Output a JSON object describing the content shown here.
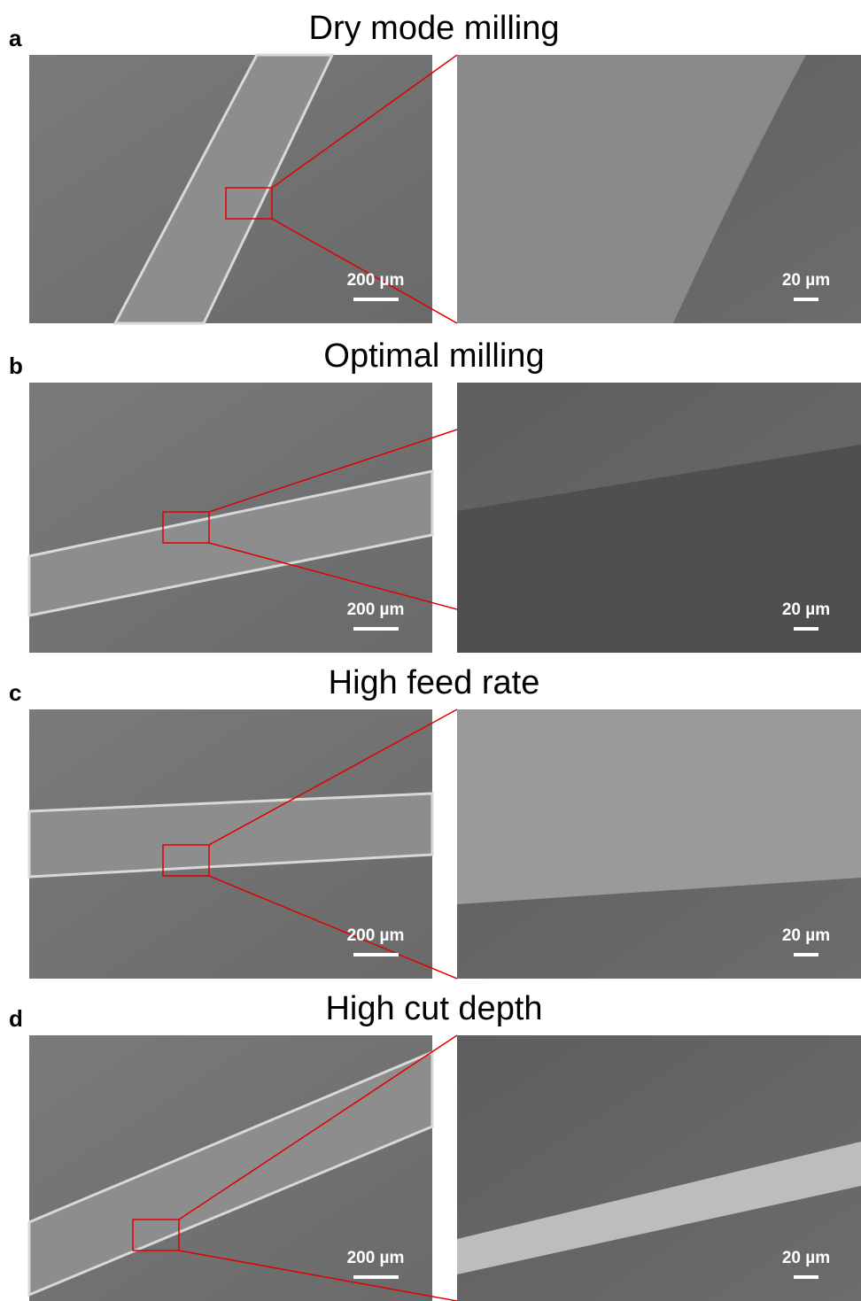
{
  "panels": [
    {
      "letter": "a",
      "title": "Dry mode milling",
      "left_scale": "200 µm",
      "right_scale": "20 µm"
    },
    {
      "letter": "b",
      "title": "Optimal milling",
      "left_scale": "200 µm",
      "right_scale": "20 µm"
    },
    {
      "letter": "c",
      "title": "High feed rate",
      "left_scale": "200 µm",
      "right_scale": "20 µm"
    },
    {
      "letter": "d",
      "title": "High cut depth",
      "left_scale": "200 µm",
      "right_scale": "20 µm"
    }
  ]
}
